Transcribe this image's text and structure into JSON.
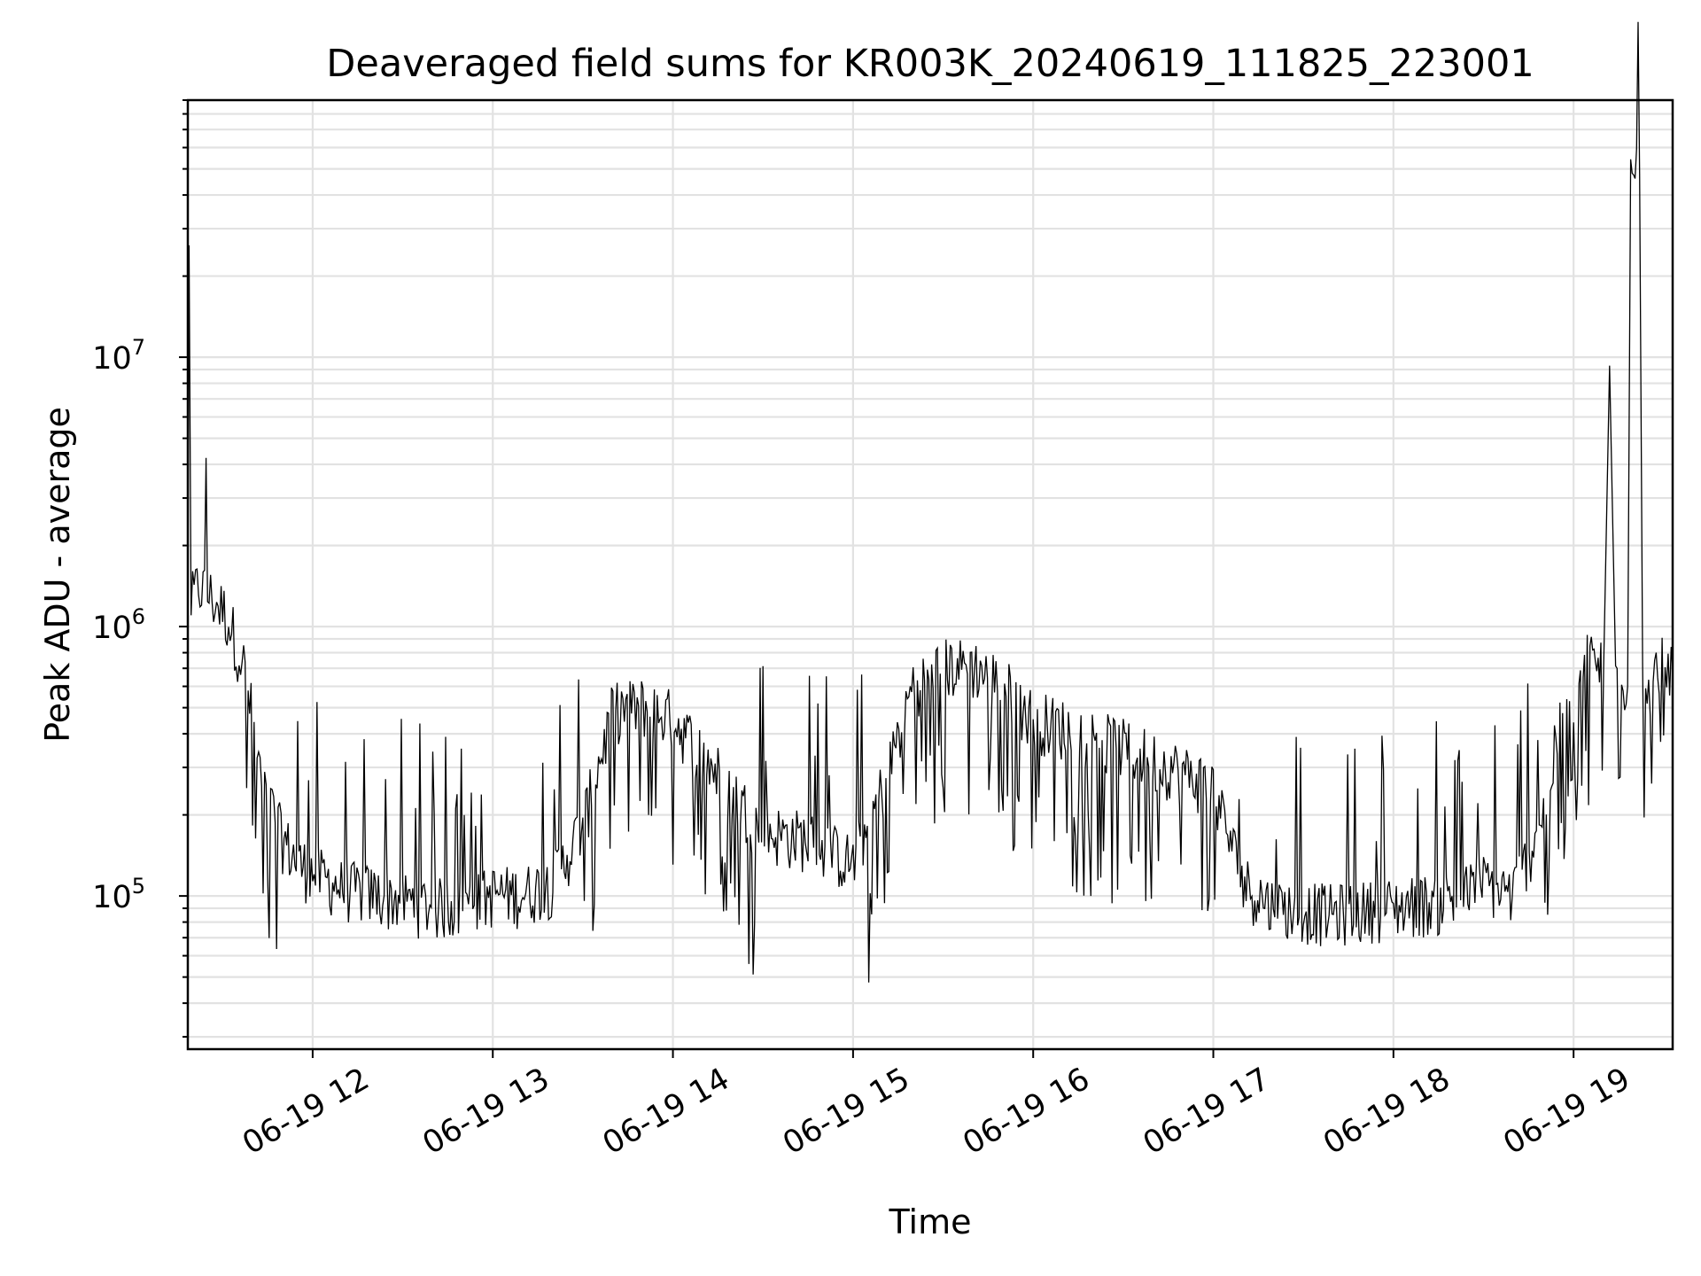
{
  "chart_data": {
    "type": "line",
    "title": "Deaveraged field sums for KR003K_20240619_111825_223001",
    "xlabel": "Time",
    "ylabel": "Peak ADU - average",
    "y_scale": "log",
    "ylim": [
      27000,
      90000000
    ],
    "xlim": [
      "2024-06-19 11:18:25",
      "2024-06-19 19:33:00"
    ],
    "x_ticks": [
      "06-19 12",
      "06-19 13",
      "06-19 14",
      "06-19 15",
      "06-19 16",
      "06-19 17",
      "06-19 18",
      "06-19 19"
    ],
    "x_tick_times": [
      "2024-06-19 12:00",
      "2024-06-19 13:00",
      "2024-06-19 14:00",
      "2024-06-19 15:00",
      "2024-06-19 16:00",
      "2024-06-19 17:00",
      "2024-06-19 18:00",
      "2024-06-19 19:00"
    ],
    "y_ticks": [
      {
        "base": "10",
        "exp": "5",
        "value": 100000
      },
      {
        "base": "10",
        "exp": "6",
        "value": 1000000
      },
      {
        "base": "10",
        "exp": "7",
        "value": 10000000
      }
    ],
    "grid": true,
    "series": [
      {
        "color": "#000000",
        "points": [
          [
            "2024-06-19 11:18:25",
            1000000
          ],
          [
            "2024-06-19 11:18:50",
            26000000
          ],
          [
            "2024-06-19 11:19:30",
            1200000
          ],
          [
            "2024-06-19 11:22",
            1400000
          ],
          [
            "2024-06-19 11:25",
            1300000
          ],
          [
            "2024-06-19 11:28",
            1200000
          ],
          [
            "2024-06-19 11:31",
            1100000
          ],
          [
            "2024-06-19 11:34",
            900000
          ],
          [
            "2024-06-19 11:37",
            700000
          ],
          [
            "2024-06-19 11:40",
            450000
          ],
          [
            "2024-06-19 11:43",
            250000
          ],
          [
            "2024-06-19 11:46",
            210000
          ],
          [
            "2024-06-19 11:50",
            160000
          ],
          [
            "2024-06-19 11:55",
            130000
          ],
          [
            "2024-06-19 12:00",
            120000
          ],
          [
            "2024-06-19 12:10",
            105000
          ],
          [
            "2024-06-19 12:20",
            100000
          ],
          [
            "2024-06-19 12:30",
            95000
          ],
          [
            "2024-06-19 12:40",
            90000
          ],
          [
            "2024-06-19 12:50",
            90000
          ],
          [
            "2024-06-19 13:00",
            100000
          ],
          [
            "2024-06-19 13:10",
            100000
          ],
          [
            "2024-06-19 13:20",
            110000
          ],
          [
            "2024-06-19 13:30",
            180000
          ],
          [
            "2024-06-19 13:40",
            480000
          ],
          [
            "2024-06-19 13:50",
            500000
          ],
          [
            "2024-06-19 14:00",
            450000
          ],
          [
            "2024-06-19 14:15",
            280000
          ],
          [
            "2024-06-19 14:30",
            170000
          ],
          [
            "2024-06-19 14:45",
            160000
          ],
          [
            "2024-06-19 15:00",
            130000
          ],
          [
            "2024-06-19 15:10",
            250000
          ],
          [
            "2024-06-19 15:20",
            600000
          ],
          [
            "2024-06-19 15:30",
            700000
          ],
          [
            "2024-06-19 15:40",
            700000
          ],
          [
            "2024-06-19 15:50",
            600000
          ],
          [
            "2024-06-19 16:00",
            450000
          ],
          [
            "2024-06-19 16:15",
            400000
          ],
          [
            "2024-06-19 16:30",
            350000
          ],
          [
            "2024-06-19 16:45",
            300000
          ],
          [
            "2024-06-19 17:00",
            250000
          ],
          [
            "2024-06-19 17:10",
            110000
          ],
          [
            "2024-06-19 17:20",
            90000
          ],
          [
            "2024-06-19 17:40",
            85000
          ],
          [
            "2024-06-19 18:00",
            90000
          ],
          [
            "2024-06-19 18:20",
            95000
          ],
          [
            "2024-06-19 18:30",
            110000
          ],
          [
            "2024-06-19 18:40",
            100000
          ],
          [
            "2024-06-19 18:50",
            200000
          ],
          [
            "2024-06-19 18:55",
            400000
          ],
          [
            "2024-06-19 19:00",
            550000
          ],
          [
            "2024-06-19 19:05",
            750000
          ],
          [
            "2024-06-19 19:10",
            700000
          ],
          [
            "2024-06-19 19:12",
            9300000
          ],
          [
            "2024-06-19 19:14",
            650000
          ],
          [
            "2024-06-19 19:18",
            600000
          ],
          [
            "2024-06-19 19:19",
            62000000
          ],
          [
            "2024-06-19 19:21",
            55000000
          ],
          [
            "2024-06-19 19:22",
            48000000
          ],
          [
            "2024-06-19 19:23",
            700000
          ],
          [
            "2024-06-19 19:26",
            600000
          ],
          [
            "2024-06-19 19:30",
            780000
          ],
          [
            "2024-06-19 19:33",
            700000
          ]
        ]
      }
    ]
  }
}
